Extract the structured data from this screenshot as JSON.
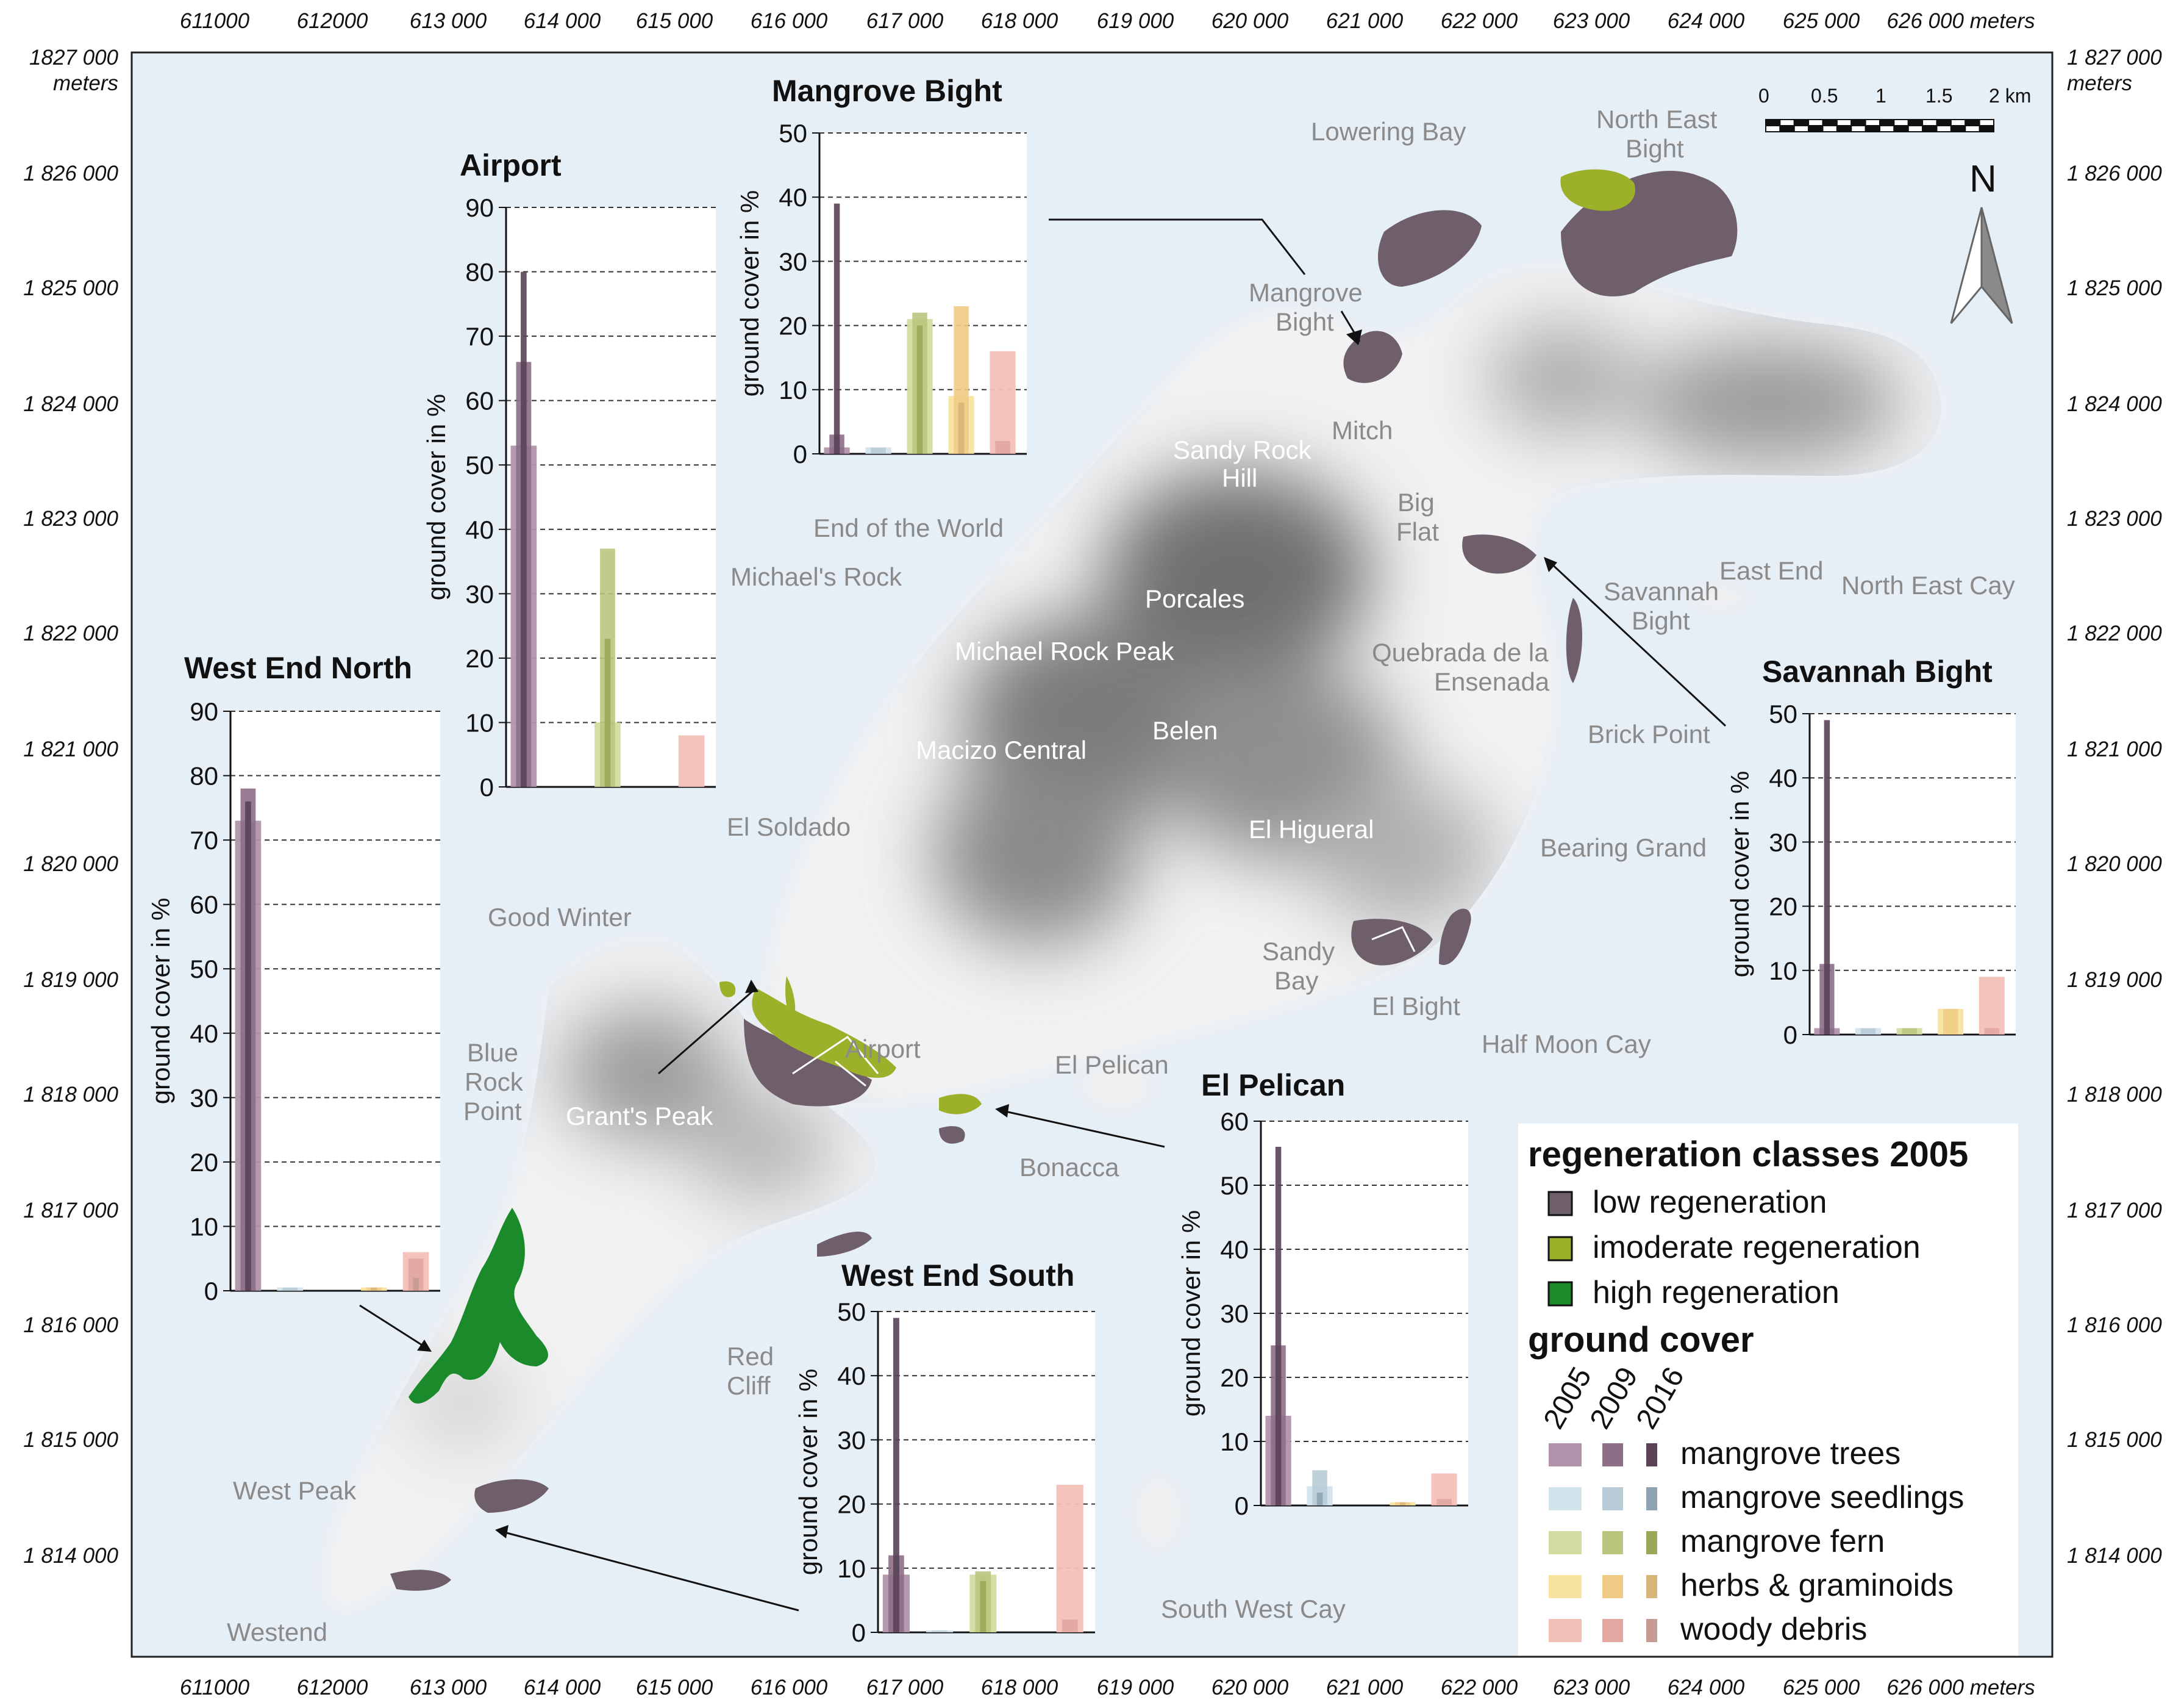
{
  "map": {
    "x_ticks": [
      "611000",
      "612000",
      "613 000",
      "614 000",
      "615 000",
      "616 000",
      "617 000",
      "618 000",
      "619 000",
      "620 000",
      "621 000",
      "622 000",
      "623 000",
      "624 000",
      "625 000",
      "626 000 meters"
    ],
    "y_ticks": [
      {
        "value": "1827 000",
        "unit": "meters"
      },
      {
        "value": "1 826 000"
      },
      {
        "value": "1 825 000"
      },
      {
        "value": "1 824 000"
      },
      {
        "value": "1 823 000"
      },
      {
        "value": "1 822 000"
      },
      {
        "value": "1 821 000"
      },
      {
        "value": "1 820 000"
      },
      {
        "value": "1 819 000"
      },
      {
        "value": "1 818 000"
      },
      {
        "value": "1 817 000"
      },
      {
        "value": "1 816 000"
      },
      {
        "value": "1 815 000"
      },
      {
        "value": "1 814 000"
      }
    ],
    "y_ticks_right": [
      {
        "value": "1 827 000",
        "unit": "meters"
      },
      {
        "value": "1 826 000"
      },
      {
        "value": "1 825 000"
      },
      {
        "value": "1 824 000"
      },
      {
        "value": "1 823 000"
      },
      {
        "value": "1 822 000"
      },
      {
        "value": "1 821 000"
      },
      {
        "value": "1 820 000"
      },
      {
        "value": "1 819 000"
      },
      {
        "value": "1 818 000"
      },
      {
        "value": "1 817 000"
      },
      {
        "value": "1 816 000"
      },
      {
        "value": "1 815 000"
      },
      {
        "value": "1 814 000"
      }
    ],
    "place_names": {
      "lowering_bay": "Lowering Bay",
      "north_east_bight": [
        "North East",
        "Bight"
      ],
      "mangrove_bight": [
        "Mangrove",
        "Bight"
      ],
      "mitch": "Mitch",
      "sandy_rock_hill": [
        "Sandy Rock",
        "Hill"
      ],
      "big_flat": [
        "Big",
        "Flat"
      ],
      "end_of_the_world": "End of the World",
      "michaels_rock": "Michael's Rock",
      "porcales": "Porcales",
      "savannah_bight": [
        "Savannah",
        "Bight"
      ],
      "east_end": "East End",
      "north_east_cay": "North East Cay",
      "michael_rock_peak": "Michael Rock Peak",
      "quebrada": [
        "Quebrada de la",
        "Ensenada"
      ],
      "belen": "Belen",
      "macizo_central": "Macizo Central",
      "brick_point": "Brick Point",
      "el_soldado": "El Soldado",
      "el_higueral": "El Higueral",
      "bearing_grand": "Bearing Grand",
      "good_winter": "Good Winter",
      "sandy_bay": [
        "Sandy",
        "Bay"
      ],
      "el_bight": "El Bight",
      "half_moon_cay": "Half Moon Cay",
      "blue_rock_point": [
        "Blue",
        "Rock",
        "Point"
      ],
      "airport": "Airport",
      "el_pelican": "El Pelican",
      "grants_peak": "Grant's Peak",
      "bonacca": "Bonacca",
      "red_cliff": [
        "Red",
        "Cliff"
      ],
      "west_peak": "West Peak",
      "westend": "Westend",
      "south_west_cay": "South West Cay"
    },
    "scale_bar": {
      "labels": [
        "0",
        "0.5",
        "1",
        "1.5",
        "2 km"
      ]
    },
    "north_label": "N"
  },
  "legend": {
    "regen_title": "regeneration classes 2005",
    "regen_items": [
      {
        "label": "low regeneration",
        "color": "#6e5f6b"
      },
      {
        "label": "imoderate regeneration",
        "color": "#9db02a"
      },
      {
        "label": "high regeneration",
        "color": "#1a8a2a"
      }
    ],
    "cover_title": "ground cover",
    "years": [
      "2005",
      "2009",
      "2016"
    ],
    "cover_items": [
      {
        "label": "mangrove trees",
        "colors": [
          "#b193ab",
          "#8c6e87",
          "#5a4256"
        ]
      },
      {
        "label": "mangrove seedlings",
        "colors": [
          "#d3e3ec",
          "#b8cbd6",
          "#8fa4b2"
        ]
      },
      {
        "label": "mangrove fern",
        "colors": [
          "#d3dca0",
          "#b8c67e",
          "#9ba85a"
        ]
      },
      {
        "label": "herbs & graminoids",
        "colors": [
          "#f8e3a0",
          "#f0cb86",
          "#d8b67a"
        ]
      },
      {
        "label": "woody debris",
        "colors": [
          "#f3c0b8",
          "#e1a7a0",
          "#c79a94"
        ]
      }
    ]
  },
  "chart_data": [
    {
      "type": "bar",
      "title": "Mangrove Bight",
      "ylabel": "ground cover in %",
      "ylim": [
        0,
        50
      ],
      "yticks": [
        0,
        10,
        20,
        30,
        40,
        50
      ],
      "categories": [
        "mangrove trees",
        "mangrove seedlings",
        "mangrove fern",
        "herbs & graminoids",
        "woody debris"
      ],
      "series": [
        {
          "name": "2005",
          "values": [
            1,
            1,
            21,
            9,
            16
          ]
        },
        {
          "name": "2009",
          "values": [
            3,
            1,
            22,
            23,
            2
          ]
        },
        {
          "name": "2016",
          "values": [
            39,
            0,
            20,
            8,
            0
          ]
        }
      ]
    },
    {
      "type": "bar",
      "title": "Airport",
      "ylabel": "ground cover in %",
      "ylim": [
        0,
        90
      ],
      "yticks": [
        0,
        10,
        20,
        30,
        40,
        50,
        60,
        70,
        80,
        90
      ],
      "categories": [
        "mangrove trees",
        "mangrove seedlings",
        "mangrove fern",
        "herbs & graminoids",
        "woody debris"
      ],
      "series": [
        {
          "name": "2005",
          "values": [
            53,
            0,
            10,
            0,
            8
          ]
        },
        {
          "name": "2009",
          "values": [
            66,
            0,
            37,
            0,
            0
          ]
        },
        {
          "name": "2016",
          "values": [
            80,
            0,
            23,
            0,
            0
          ]
        }
      ]
    },
    {
      "type": "bar",
      "title": "West End North",
      "ylabel": "ground cover in %",
      "ylim": [
        0,
        90
      ],
      "yticks": [
        0,
        10,
        20,
        30,
        40,
        50,
        60,
        70,
        80,
        90
      ],
      "categories": [
        "mangrove trees",
        "mangrove seedlings",
        "mangrove fern",
        "herbs & graminoids",
        "woody debris"
      ],
      "series": [
        {
          "name": "2005",
          "values": [
            73,
            0.5,
            0,
            0.5,
            6
          ]
        },
        {
          "name": "2009",
          "values": [
            78,
            0.5,
            0,
            0.5,
            5
          ]
        },
        {
          "name": "2016",
          "values": [
            76,
            0,
            0,
            0.5,
            2
          ]
        }
      ]
    },
    {
      "type": "bar",
      "title": "Savannah Bight",
      "ylabel": "ground cover in %",
      "ylim": [
        0,
        50
      ],
      "yticks": [
        0,
        10,
        20,
        30,
        40,
        50
      ],
      "categories": [
        "mangrove trees",
        "mangrove seedlings",
        "mangrove fern",
        "herbs & graminoids",
        "woody debris"
      ],
      "series": [
        {
          "name": "2005",
          "values": [
            1,
            1,
            1,
            4,
            9
          ]
        },
        {
          "name": "2009",
          "values": [
            11,
            1,
            1,
            4,
            1
          ]
        },
        {
          "name": "2016",
          "values": [
            49,
            0,
            0,
            0,
            0
          ]
        }
      ]
    },
    {
      "type": "bar",
      "title": "El Pelican",
      "ylabel": "ground cover in %",
      "ylim": [
        0,
        60
      ],
      "yticks": [
        0,
        10,
        20,
        30,
        40,
        50,
        60
      ],
      "categories": [
        "mangrove trees",
        "mangrove seedlings",
        "mangrove fern",
        "herbs & graminoids",
        "woody debris"
      ],
      "series": [
        {
          "name": "2005",
          "values": [
            14,
            3,
            0,
            0.5,
            5
          ]
        },
        {
          "name": "2009",
          "values": [
            25,
            5.5,
            0,
            0.5,
            1
          ]
        },
        {
          "name": "2016",
          "values": [
            56,
            2,
            0,
            0.5,
            0
          ]
        }
      ]
    },
    {
      "type": "bar",
      "title": "West End South",
      "ylabel": "ground cover in %",
      "ylim": [
        0,
        50
      ],
      "yticks": [
        0,
        10,
        20,
        30,
        40,
        50
      ],
      "categories": [
        "mangrove trees",
        "mangrove seedlings",
        "mangrove fern",
        "herbs & graminoids",
        "woody debris"
      ],
      "series": [
        {
          "name": "2005",
          "values": [
            9,
            0.3,
            9,
            0,
            23
          ]
        },
        {
          "name": "2009",
          "values": [
            12,
            0.3,
            9.5,
            0,
            2
          ]
        },
        {
          "name": "2016",
          "values": [
            49,
            0,
            8,
            0,
            0
          ]
        }
      ]
    }
  ]
}
